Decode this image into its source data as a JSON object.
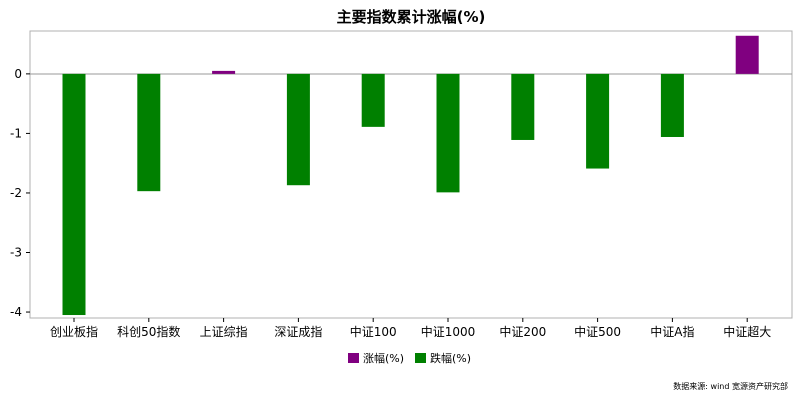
{
  "chart_data": {
    "type": "bar",
    "title": "主要指数累计涨幅(%)",
    "xlabel": "",
    "ylabel": "",
    "categories": [
      "创业板指",
      "科创50指数",
      "上证综指",
      "深证成指",
      "中证100",
      "中证1000",
      "中证200",
      "中证500",
      "中证A指",
      "中证超大"
    ],
    "values": [
      -4.05,
      -1.97,
      0.05,
      -1.87,
      -0.89,
      -1.99,
      -1.11,
      -1.59,
      -1.06,
      0.64
    ],
    "ylim": [
      -4.1,
      0.72
    ],
    "yticks": [
      0,
      -1,
      -2,
      -3,
      -4
    ],
    "ytick_labels": [
      "0",
      "-1",
      "-2",
      "-3",
      "-4"
    ],
    "grid": false,
    "legend_position": "bottom-center",
    "legend": [
      {
        "label": "涨幅(%)",
        "color": "#800080"
      },
      {
        "label": "跌幅(%)",
        "color": "#008000"
      }
    ],
    "colors": {
      "up": "#800080",
      "down": "#008000"
    }
  },
  "source_note": "数据来源:  wind 宽源资产研究部"
}
